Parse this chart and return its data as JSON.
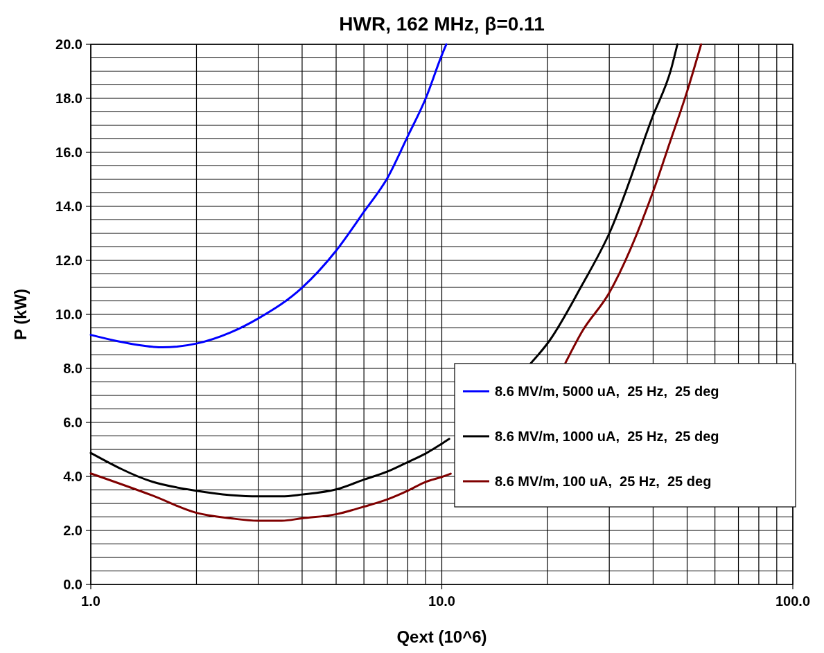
{
  "chart_data": {
    "type": "line",
    "title": "HWR, 162 MHz, β=0.11",
    "xlabel": "Qext (10^6)",
    "ylabel": "P (kW)",
    "log": "x",
    "grid": true,
    "legend": "right",
    "line_style": "solid",
    "marker": "none",
    "xlim": [
      1,
      100
    ],
    "xticks": [
      {
        "value": 1,
        "label": "1.0"
      },
      {
        "value": 2,
        "label": null
      },
      {
        "value": 3,
        "label": null
      },
      {
        "value": 4,
        "label": null
      },
      {
        "value": 5,
        "label": null
      },
      {
        "value": 6,
        "label": null
      },
      {
        "value": 7,
        "label": null
      },
      {
        "value": 8,
        "label": null
      },
      {
        "value": 9,
        "label": null
      },
      {
        "value": 10,
        "label": "10.0"
      },
      {
        "value": 20,
        "label": null
      },
      {
        "value": 30,
        "label": null
      },
      {
        "value": 40,
        "label": null
      },
      {
        "value": 50,
        "label": null
      },
      {
        "value": 60,
        "label": null
      },
      {
        "value": 70,
        "label": null
      },
      {
        "value": 80,
        "label": null
      },
      {
        "value": 90,
        "label": null
      },
      {
        "value": 100,
        "label": "100.0"
      }
    ],
    "ylim": [
      0,
      20
    ],
    "yticks": [
      {
        "value": 0,
        "label": "0.0"
      },
      {
        "value": 0.5,
        "label": null
      },
      {
        "value": 1,
        "label": null
      },
      {
        "value": 1.5,
        "label": null
      },
      {
        "value": 2,
        "label": "2.0"
      },
      {
        "value": 2.5,
        "label": null
      },
      {
        "value": 3,
        "label": null
      },
      {
        "value": 3.5,
        "label": null
      },
      {
        "value": 4,
        "label": "4.0"
      },
      {
        "value": 4.5,
        "label": null
      },
      {
        "value": 5,
        "label": null
      },
      {
        "value": 5.5,
        "label": null
      },
      {
        "value": 6,
        "label": "6.0"
      },
      {
        "value": 6.5,
        "label": null
      },
      {
        "value": 7,
        "label": null
      },
      {
        "value": 7.5,
        "label": null
      },
      {
        "value": 8,
        "label": "8.0"
      },
      {
        "value": 8.5,
        "label": null
      },
      {
        "value": 9,
        "label": null
      },
      {
        "value": 9.5,
        "label": null
      },
      {
        "value": 10,
        "label": "10.0"
      },
      {
        "value": 10.5,
        "label": null
      },
      {
        "value": 11,
        "label": null
      },
      {
        "value": 11.5,
        "label": null
      },
      {
        "value": 12,
        "label": "12.0"
      },
      {
        "value": 12.5,
        "label": null
      },
      {
        "value": 13,
        "label": null
      },
      {
        "value": 13.5,
        "label": null
      },
      {
        "value": 14,
        "label": "14.0"
      },
      {
        "value": 14.5,
        "label": null
      },
      {
        "value": 15,
        "label": null
      },
      {
        "value": 15.5,
        "label": null
      },
      {
        "value": 16,
        "label": "16.0"
      },
      {
        "value": 16.5,
        "label": null
      },
      {
        "value": 17,
        "label": null
      },
      {
        "value": 17.5,
        "label": null
      },
      {
        "value": 18,
        "label": "18.0"
      },
      {
        "value": 18.5,
        "label": null
      },
      {
        "value": 19,
        "label": null
      },
      {
        "value": 19.5,
        "label": null
      },
      {
        "value": 20,
        "label": "20.0"
      }
    ],
    "series": [
      {
        "name": "8.6 MV/m, 5000 uA,  25 Hz,  25 deg",
        "color": "#0000ff",
        "x": [
          1,
          1.2,
          1.5,
          1.6,
          2,
          2.5,
          3,
          4,
          5,
          6,
          7,
          8,
          9,
          10,
          10.3
        ],
        "values": [
          9.24,
          9.0,
          8.8,
          8.78,
          8.92,
          9.33,
          9.85,
          10.99,
          12.36,
          13.8,
          15.05,
          16.6,
          18.0,
          19.6,
          20.0
        ]
      },
      {
        "name": "8.6 MV/m, 1000 uA,  25 Hz,  25 deg",
        "color": "#000000",
        "x": [
          1,
          1.5,
          2,
          2.5,
          3,
          3.5,
          4,
          5,
          6,
          7,
          8,
          9,
          10,
          10.5,
          14,
          17.9,
          20.2,
          25,
          30,
          40,
          45,
          46.9
        ],
        "values": [
          4.87,
          3.8,
          3.47,
          3.31,
          3.26,
          3.26,
          3.33,
          3.52,
          3.88,
          4.18,
          4.53,
          4.85,
          5.21,
          5.39,
          null,
          8.18,
          9.0,
          11.05,
          13.0,
          17.37,
          19.08,
          20.0
        ]
      },
      {
        "name": "8.6 MV/m, 100 uA,  25 Hz,  25 deg",
        "color": "#800000",
        "x": [
          1,
          1.5,
          2,
          2.5,
          3,
          3.5,
          4,
          5,
          6,
          7,
          8,
          9,
          10,
          10.6,
          16,
          22.5,
          25,
          30,
          40,
          45,
          50,
          54.8
        ],
        "values": [
          4.11,
          3.29,
          2.65,
          2.45,
          2.36,
          2.36,
          2.45,
          2.6,
          2.88,
          3.15,
          3.47,
          3.8,
          3.98,
          4.1,
          null,
          8.2,
          9.33,
          10.8,
          14.55,
          16.5,
          18.26,
          20.0
        ]
      }
    ]
  }
}
